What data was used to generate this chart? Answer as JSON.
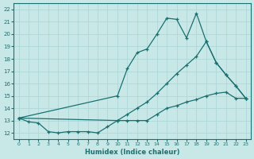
{
  "xlabel": "Humidex (Indice chaleur)",
  "xlim": [
    -0.5,
    23.5
  ],
  "ylim": [
    11.5,
    22.5
  ],
  "yticks": [
    12,
    13,
    14,
    15,
    16,
    17,
    18,
    19,
    20,
    21,
    22
  ],
  "xticks": [
    0,
    1,
    2,
    3,
    4,
    5,
    6,
    7,
    8,
    9,
    10,
    11,
    12,
    13,
    14,
    15,
    16,
    17,
    18,
    19,
    20,
    21,
    22,
    23
  ],
  "bg_color": "#c8e8e8",
  "line_color": "#1a7070",
  "grid_color": "#b0d8d8",
  "lines": [
    {
      "x": [
        0,
        1,
        2,
        3,
        4,
        5,
        6,
        7,
        8,
        9,
        10,
        11,
        12,
        13,
        14,
        15,
        16,
        17,
        18,
        19,
        20,
        21,
        22,
        23
      ],
      "y": [
        13.2,
        12.9,
        12.8,
        12.1,
        12.0,
        12.1,
        12.1,
        12.1,
        12.0,
        12.5,
        13.0,
        13.0,
        13.0,
        13.0,
        13.5,
        14.0,
        14.2,
        14.5,
        14.7,
        15.0,
        15.2,
        15.3,
        14.8,
        14.8
      ]
    },
    {
      "x": [
        0,
        10,
        11,
        12,
        13,
        14,
        15,
        16,
        17,
        18,
        19,
        20,
        21,
        22,
        23
      ],
      "y": [
        13.2,
        13.0,
        13.5,
        14.0,
        14.5,
        15.2,
        16.0,
        16.8,
        17.5,
        18.2,
        19.4,
        17.7,
        16.7,
        15.8,
        14.8
      ]
    },
    {
      "x": [
        0,
        10,
        11,
        12,
        13,
        14,
        15,
        16,
        17,
        18,
        19,
        20,
        21,
        22,
        23
      ],
      "y": [
        13.2,
        15.0,
        17.2,
        18.5,
        18.8,
        20.0,
        21.3,
        21.2,
        19.7,
        21.7,
        19.4,
        17.7,
        16.7,
        15.8,
        14.8
      ]
    }
  ]
}
